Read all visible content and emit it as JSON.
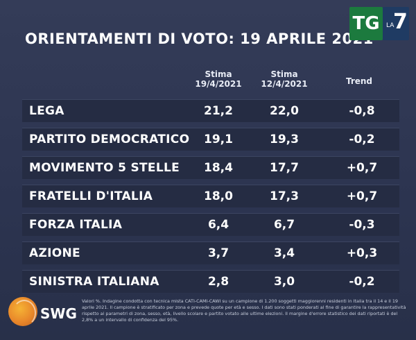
{
  "title": "ORIENTAMENTI DI VOTO: 19 APRILE 2021",
  "logo": {
    "tg": "TG",
    "la": "LA",
    "seven": "7"
  },
  "columns": {
    "col1_line1": "Stima",
    "col1_line2": "19/4/2021",
    "col2_line1": "Stima",
    "col2_line2": "12/4/2021",
    "col3": "Trend"
  },
  "rows": [
    {
      "party": "LEGA",
      "v1": "21,2",
      "v2": "22,0",
      "trend": "-0,8"
    },
    {
      "party": "PARTITO DEMOCRATICO",
      "v1": "19,1",
      "v2": "19,3",
      "trend": "-0,2"
    },
    {
      "party": "MOVIMENTO 5 STELLE",
      "v1": "18,4",
      "v2": "17,7",
      "trend": "+0,7"
    },
    {
      "party": "FRATELLI D'ITALIA",
      "v1": "18,0",
      "v2": "17,3",
      "trend": "+0,7"
    },
    {
      "party": "FORZA ITALIA",
      "v1": "6,4",
      "v2": "6,7",
      "trend": "-0,3"
    },
    {
      "party": "AZIONE",
      "v1": "3,7",
      "v2": "3,4",
      "trend": "+0,3"
    },
    {
      "party": "SINISTRA ITALIANA",
      "v1": "2,8",
      "v2": "3,0",
      "trend": "-0,2"
    }
  ],
  "swg": "SWG",
  "footnote": "Valori %. Indagine condotta con tecnica mista CATI-CAMI-CAWI su un campione di 1.200 soggetti maggiorenni residenti in Italia tra il 14 e il 19 aprile 2021. Il campione è stratificato per zona e prevede quote per età e sesso. I dati sono stati ponderati al fine di garantire la rappresentatività rispetto ai parametri di zona, sesso, età, livello scolare e partito votato alle ultime elezioni. Il margine d'errore statistico dei dati riportati è del 2,8% a un intervallo di confidenza del 95%."
}
